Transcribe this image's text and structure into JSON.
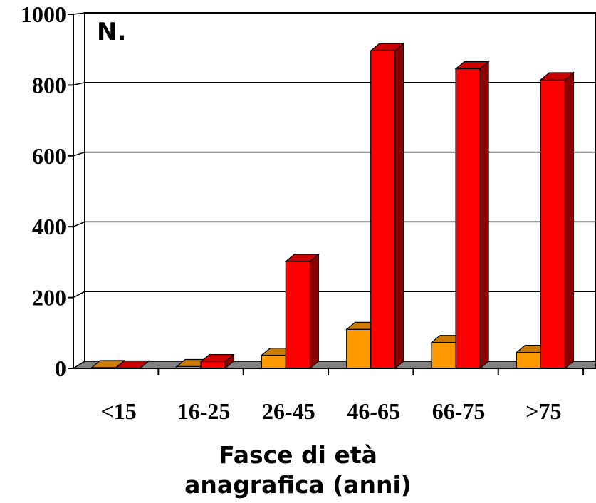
{
  "chart_data": {
    "type": "bar",
    "ylabel": "N.",
    "xlabel_line1": "Fasce di età",
    "xlabel_line2": "anagrafica (anni)",
    "categories": [
      "<15",
      "16-25",
      "26-45",
      "46-65",
      "66-75",
      ">75"
    ],
    "series": [
      {
        "values": [
          2,
          5,
          37,
          110,
          73,
          45
        ],
        "color": "#FF9900"
      },
      {
        "values": [
          1,
          19,
          302,
          897,
          846,
          815
        ],
        "color": "#FF0000"
      }
    ],
    "yticks": [
      "0",
      "200",
      "400",
      "600",
      "800",
      "1000"
    ],
    "ylim": [
      0,
      1000
    ],
    "grid": true,
    "style": "3d-column"
  }
}
